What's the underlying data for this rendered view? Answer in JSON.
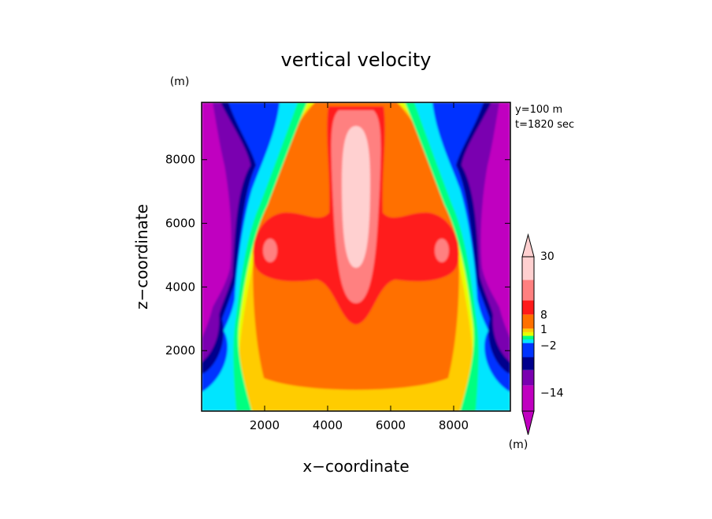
{
  "chart_data": {
    "type": "heatmap",
    "title": "vertical velocity",
    "xlabel": "x−coordinate",
    "ylabel": "z−coordinate",
    "x_unit": "(m)",
    "y_unit": "(m)",
    "xlim": [
      0,
      9800
    ],
    "ylim": [
      100,
      9800
    ],
    "x_ticks": [
      2000,
      4000,
      6000,
      8000
    ],
    "y_ticks": [
      2000,
      4000,
      6000,
      8000
    ],
    "info_lines": [
      "y=100  m",
      "t=1820 sec"
    ],
    "colorbar": {
      "bins": [
        {
          "color": "#c000c0"
        },
        {
          "color": "#7a00b0"
        },
        {
          "color": "#00008c"
        },
        {
          "color": "#0033ff"
        },
        {
          "color": "#00e5ff"
        },
        {
          "color": "#00ff80"
        },
        {
          "color": "#e5ff00"
        },
        {
          "color": "#ffcc00"
        },
        {
          "color": "#ff7000"
        },
        {
          "color": "#ff1a1a"
        },
        {
          "color": "#ff8080"
        },
        {
          "color": "#ffd0d0"
        }
      ],
      "labels": [
        "30",
        "8",
        "1",
        "−2",
        "−14"
      ]
    }
  }
}
